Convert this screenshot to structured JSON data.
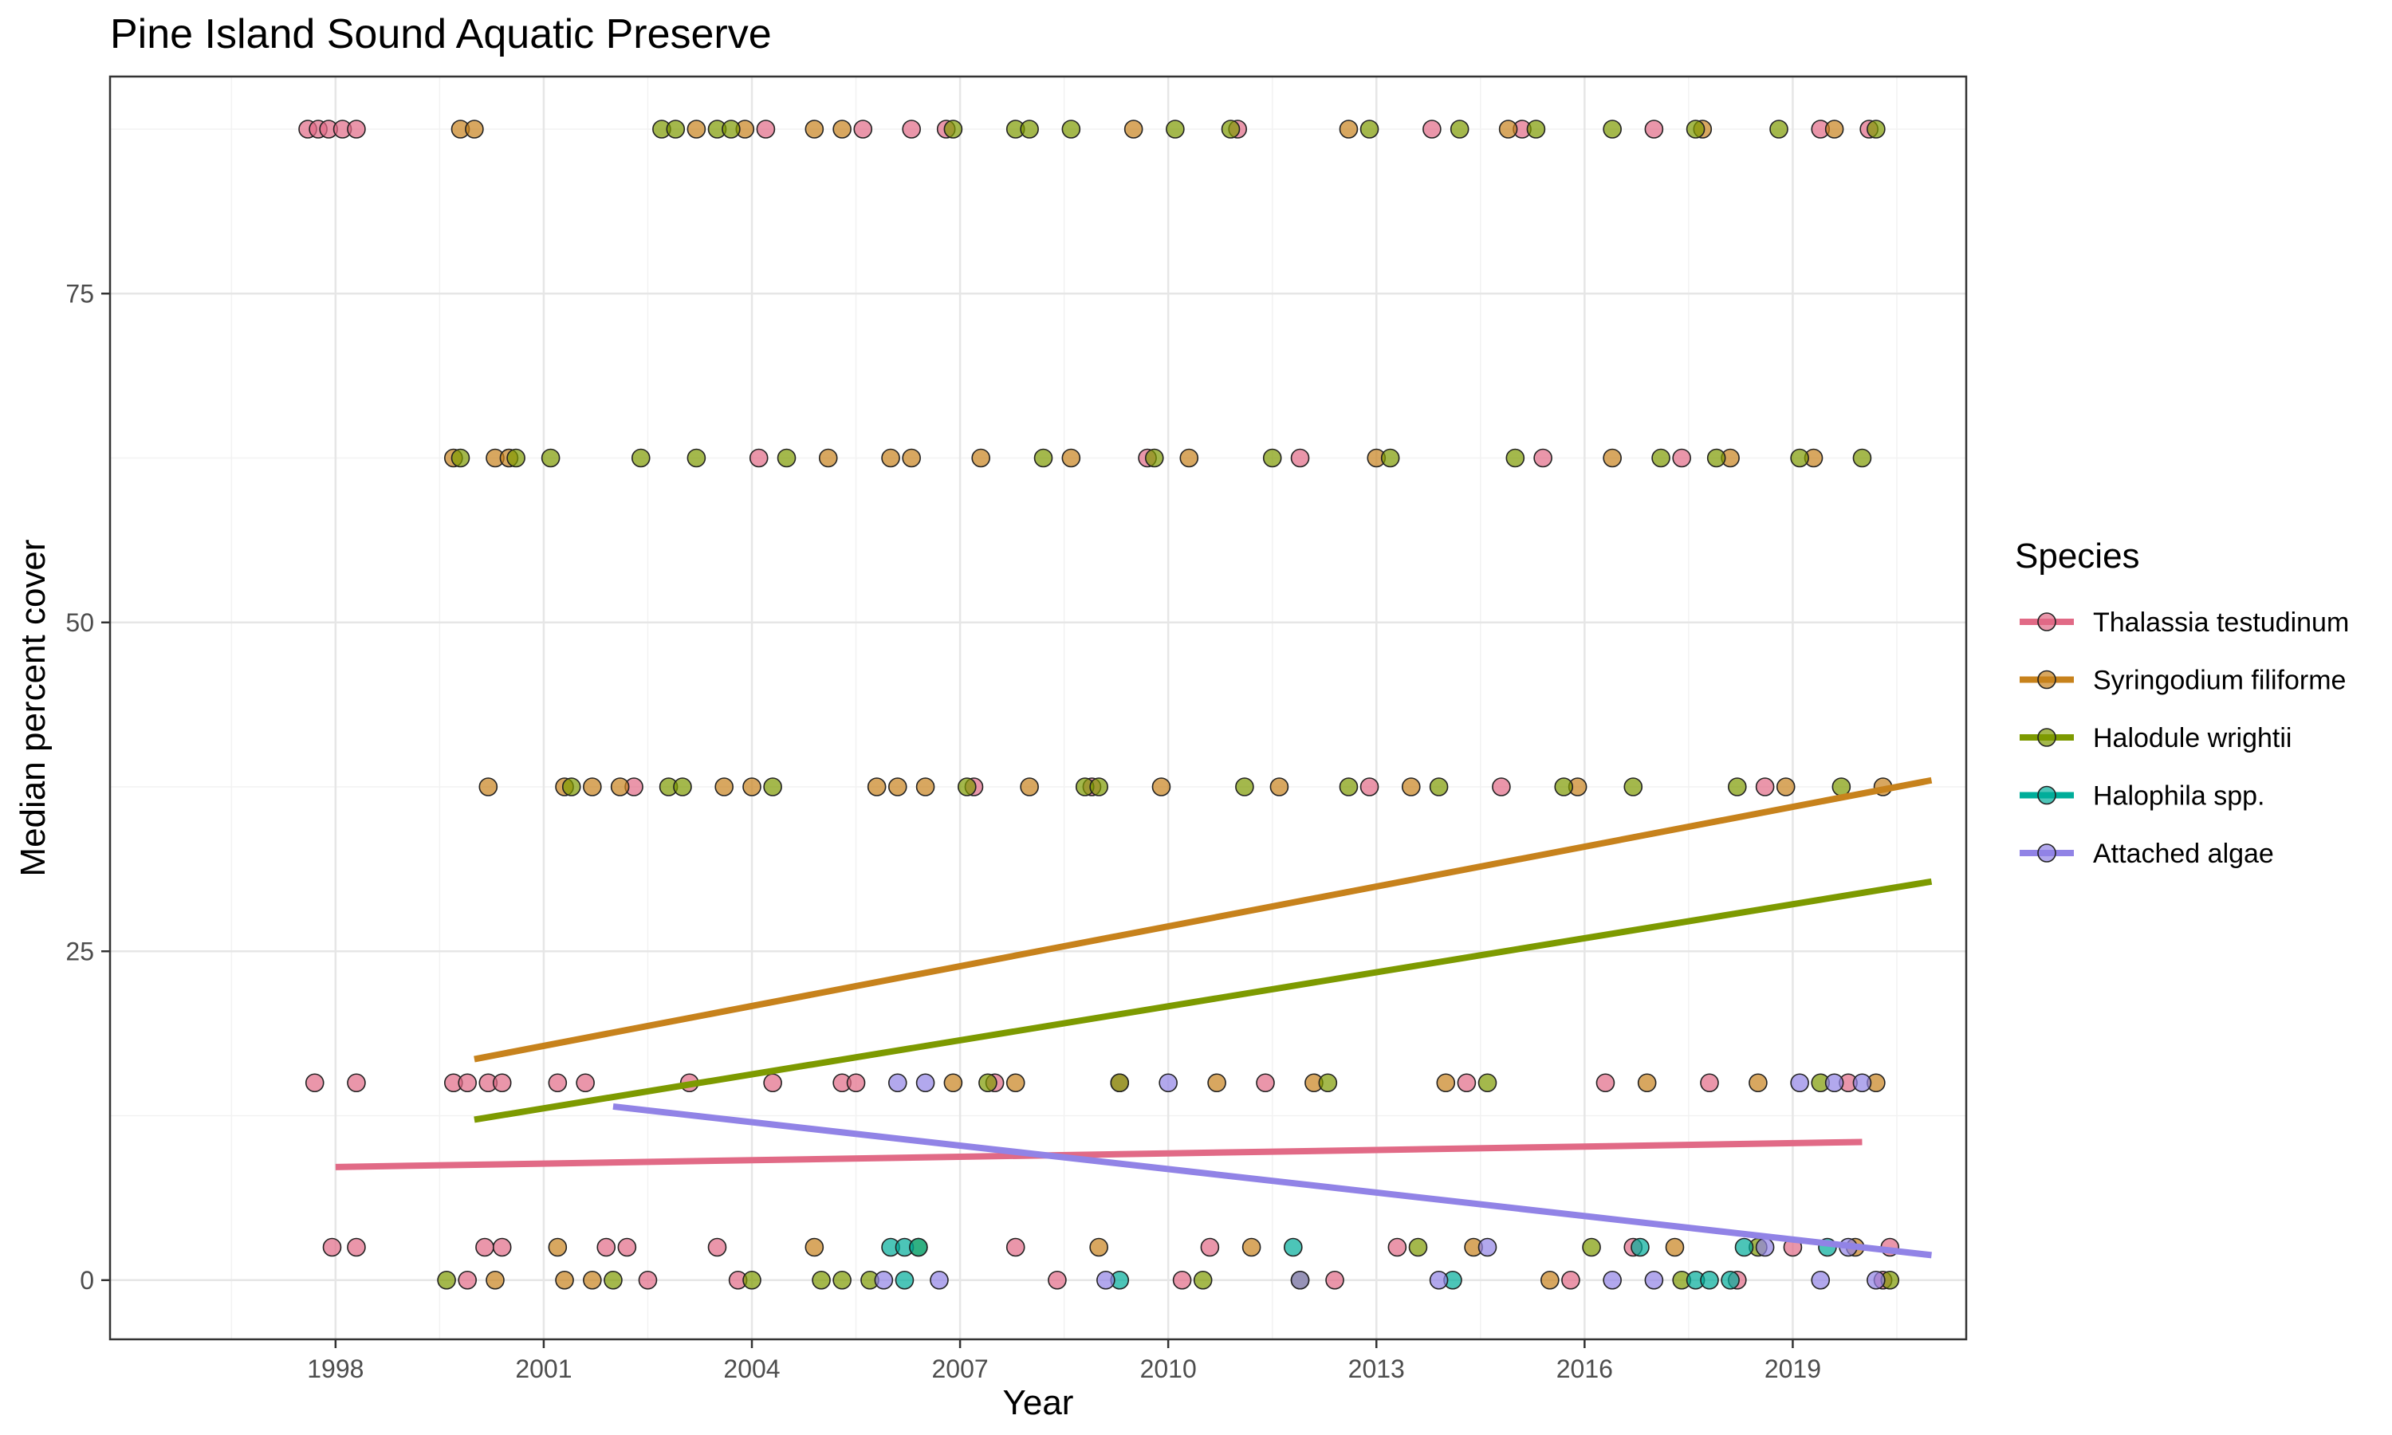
{
  "chart_data": {
    "type": "scatter",
    "title": "Pine Island Sound Aquatic Preserve",
    "xlabel": "Year",
    "ylabel": "Median percent cover",
    "xlim": [
      1994.75,
      2021.5
    ],
    "ylim": [
      -4.5,
      91.5
    ],
    "x_ticks": [
      1998,
      2001,
      2004,
      2007,
      2010,
      2013,
      2016,
      2019
    ],
    "x_tick_labels": [
      "1998",
      "2001",
      "2004",
      "2007",
      "2010",
      "2013",
      "2016",
      "2019"
    ],
    "y_ticks": [
      0,
      25,
      50,
      75
    ],
    "y_tick_labels": [
      "0",
      "25",
      "50",
      "75"
    ],
    "y_minor_ticks": [
      12.5,
      37.5,
      62.5,
      87.5
    ],
    "cover_levels": [
      0,
      2.5,
      15,
      37.5,
      62.5,
      87.5
    ],
    "grid": true,
    "legend": {
      "title": "Species",
      "position": "right",
      "entries": [
        {
          "name": "Thalassia testudinum",
          "color": "#E16A86"
        },
        {
          "name": "Syringodium filiforme",
          "color": "#C7821C"
        },
        {
          "name": "Halodule wrightii",
          "color": "#7D9A00"
        },
        {
          "name": "Halophila spp.",
          "color": "#00AD9A"
        },
        {
          "name": "Attached algae",
          "color": "#9183E6"
        }
      ]
    },
    "trend_lines": [
      {
        "name": "Thalassia testudinum",
        "x": [
          1998,
          2020
        ],
        "y": [
          8.6,
          10.5
        ]
      },
      {
        "name": "Syringodium filiforme",
        "x": [
          2000,
          2021
        ],
        "y": [
          16.8,
          38.0
        ]
      },
      {
        "name": "Halodule wrightii",
        "x": [
          2000,
          2021
        ],
        "y": [
          12.2,
          30.3
        ]
      },
      {
        "name": "Attached algae",
        "x": [
          2002,
          2021
        ],
        "y": [
          13.2,
          1.9
        ]
      }
    ],
    "series": [
      {
        "name": "Thalassia testudinum",
        "color": "#E16A86",
        "points": [
          [
            1997.6,
            87.5
          ],
          [
            1997.75,
            87.5
          ],
          [
            1997.9,
            87.5
          ],
          [
            1998.1,
            87.5
          ],
          [
            1998.3,
            87.5
          ],
          [
            1997.7,
            15
          ],
          [
            1998.3,
            15
          ],
          [
            1997.95,
            2.5
          ],
          [
            1998.3,
            2.5
          ],
          [
            1999.7,
            15
          ],
          [
            1999.9,
            15
          ],
          [
            2000.2,
            15
          ],
          [
            2000.4,
            15
          ],
          [
            1999.9,
            0
          ],
          [
            2000.15,
            2.5
          ],
          [
            2000.4,
            2.5
          ],
          [
            2001.2,
            15
          ],
          [
            2001.6,
            15
          ],
          [
            2001.9,
            2.5
          ],
          [
            2002.2,
            2.5
          ],
          [
            2002.5,
            0
          ],
          [
            2002.3,
            37.5
          ],
          [
            2003.1,
            15
          ],
          [
            2003.5,
            2.5
          ],
          [
            2003.8,
            0
          ],
          [
            2004.1,
            62.5
          ],
          [
            2004.2,
            87.5
          ],
          [
            2004.3,
            15
          ],
          [
            2005.3,
            15
          ],
          [
            2005.5,
            15
          ],
          [
            2005.6,
            87.5
          ],
          [
            2006.3,
            87.5
          ],
          [
            2006.8,
            87.5
          ],
          [
            2007.2,
            37.5
          ],
          [
            2007.5,
            15
          ],
          [
            2007.8,
            2.5
          ],
          [
            2008.4,
            0
          ],
          [
            2008.9,
            37.5
          ],
          [
            2009.3,
            15
          ],
          [
            2009.7,
            62.5
          ],
          [
            2010.2,
            0
          ],
          [
            2010.6,
            2.5
          ],
          [
            2011.0,
            87.5
          ],
          [
            2011.4,
            15
          ],
          [
            2011.9,
            62.5
          ],
          [
            2012.4,
            0
          ],
          [
            2012.9,
            37.5
          ],
          [
            2013.3,
            2.5
          ],
          [
            2013.8,
            87.5
          ],
          [
            2014.3,
            15
          ],
          [
            2014.8,
            37.5
          ],
          [
            2015.1,
            87.5
          ],
          [
            2015.4,
            62.5
          ],
          [
            2015.8,
            0
          ],
          [
            2016.3,
            15
          ],
          [
            2016.7,
            2.5
          ],
          [
            2017.0,
            87.5
          ],
          [
            2017.4,
            62.5
          ],
          [
            2017.8,
            15
          ],
          [
            2018.2,
            0
          ],
          [
            2018.6,
            37.5
          ],
          [
            2019.0,
            2.5
          ],
          [
            2019.4,
            87.5
          ],
          [
            2019.8,
            15
          ],
          [
            2020.1,
            87.5
          ],
          [
            2020.3,
            0
          ],
          [
            2020.4,
            2.5
          ]
        ]
      },
      {
        "name": "Syringodium filiforme",
        "color": "#C7821C",
        "points": [
          [
            1999.8,
            87.5
          ],
          [
            2000.0,
            87.5
          ],
          [
            1999.7,
            62.5
          ],
          [
            2000.3,
            62.5
          ],
          [
            2000.5,
            62.5
          ],
          [
            2000.2,
            37.5
          ],
          [
            2000.3,
            0
          ],
          [
            2001.3,
            0
          ],
          [
            2001.7,
            0
          ],
          [
            2001.3,
            37.5
          ],
          [
            2001.7,
            37.5
          ],
          [
            2002.1,
            37.5
          ],
          [
            2001.2,
            2.5
          ],
          [
            2003.2,
            87.5
          ],
          [
            2003.9,
            87.5
          ],
          [
            2004.9,
            87.5
          ],
          [
            2005.3,
            87.5
          ],
          [
            2004.9,
            2.5
          ],
          [
            2005.1,
            62.5
          ],
          [
            2003.6,
            37.5
          ],
          [
            2004.0,
            37.5
          ],
          [
            2005.8,
            37.5
          ],
          [
            2006.1,
            37.5
          ],
          [
            2006.5,
            37.5
          ],
          [
            2006.0,
            62.5
          ],
          [
            2006.3,
            62.5
          ],
          [
            2006.9,
            15
          ],
          [
            2007.3,
            62.5
          ],
          [
            2007.8,
            15
          ],
          [
            2008.0,
            37.5
          ],
          [
            2008.6,
            62.5
          ],
          [
            2009.0,
            2.5
          ],
          [
            2009.5,
            87.5
          ],
          [
            2009.9,
            37.5
          ],
          [
            2010.3,
            62.5
          ],
          [
            2010.7,
            15
          ],
          [
            2011.2,
            2.5
          ],
          [
            2011.6,
            37.5
          ],
          [
            2012.1,
            15
          ],
          [
            2012.6,
            87.5
          ],
          [
            2013.0,
            62.5
          ],
          [
            2013.5,
            37.5
          ],
          [
            2014.0,
            15
          ],
          [
            2014.4,
            2.5
          ],
          [
            2014.9,
            87.5
          ],
          [
            2015.5,
            0
          ],
          [
            2015.9,
            37.5
          ],
          [
            2016.4,
            62.5
          ],
          [
            2016.9,
            15
          ],
          [
            2017.3,
            2.5
          ],
          [
            2017.7,
            87.5
          ],
          [
            2018.1,
            62.5
          ],
          [
            2018.5,
            15
          ],
          [
            2018.9,
            37.5
          ],
          [
            2019.3,
            62.5
          ],
          [
            2019.6,
            87.5
          ],
          [
            2019.9,
            2.5
          ],
          [
            2020.2,
            15
          ],
          [
            2020.3,
            37.5
          ]
        ]
      },
      {
        "name": "Halodule wrightii",
        "color": "#7D9A00",
        "points": [
          [
            1999.6,
            0
          ],
          [
            1999.8,
            62.5
          ],
          [
            2000.6,
            62.5
          ],
          [
            2001.1,
            62.5
          ],
          [
            2001.4,
            37.5
          ],
          [
            2002.0,
            0
          ],
          [
            2002.4,
            62.5
          ],
          [
            2002.7,
            87.5
          ],
          [
            2002.9,
            87.5
          ],
          [
            2003.2,
            62.5
          ],
          [
            2003.5,
            87.5
          ],
          [
            2003.7,
            87.5
          ],
          [
            2002.8,
            37.5
          ],
          [
            2003.0,
            37.5
          ],
          [
            2004.3,
            37.5
          ],
          [
            2004.0,
            0
          ],
          [
            2004.5,
            62.5
          ],
          [
            2005.0,
            0
          ],
          [
            2005.3,
            0
          ],
          [
            2005.7,
            0
          ],
          [
            2006.4,
            2.5
          ],
          [
            2006.9,
            87.5
          ],
          [
            2007.1,
            37.5
          ],
          [
            2007.4,
            15
          ],
          [
            2007.8,
            87.5
          ],
          [
            2008.0,
            87.5
          ],
          [
            2008.2,
            62.5
          ],
          [
            2008.6,
            87.5
          ],
          [
            2008.8,
            37.5
          ],
          [
            2009.0,
            37.5
          ],
          [
            2009.3,
            15
          ],
          [
            2009.8,
            62.5
          ],
          [
            2010.1,
            87.5
          ],
          [
            2010.5,
            0
          ],
          [
            2010.9,
            87.5
          ],
          [
            2011.1,
            37.5
          ],
          [
            2011.5,
            62.5
          ],
          [
            2011.9,
            0
          ],
          [
            2012.3,
            15
          ],
          [
            2012.6,
            37.5
          ],
          [
            2012.9,
            87.5
          ],
          [
            2013.2,
            62.5
          ],
          [
            2013.6,
            2.5
          ],
          [
            2013.9,
            37.5
          ],
          [
            2014.2,
            87.5
          ],
          [
            2014.6,
            15
          ],
          [
            2015.0,
            62.5
          ],
          [
            2015.3,
            87.5
          ],
          [
            2015.7,
            37.5
          ],
          [
            2016.1,
            2.5
          ],
          [
            2016.4,
            87.5
          ],
          [
            2016.7,
            37.5
          ],
          [
            2017.1,
            62.5
          ],
          [
            2017.4,
            0
          ],
          [
            2017.6,
            87.5
          ],
          [
            2017.9,
            62.5
          ],
          [
            2018.2,
            37.5
          ],
          [
            2018.5,
            2.5
          ],
          [
            2018.8,
            87.5
          ],
          [
            2019.1,
            62.5
          ],
          [
            2019.4,
            15
          ],
          [
            2019.7,
            37.5
          ],
          [
            2020.0,
            62.5
          ],
          [
            2020.2,
            87.5
          ],
          [
            2020.4,
            0
          ]
        ]
      },
      {
        "name": "Halophila spp.",
        "color": "#00AD9A",
        "points": [
          [
            2006.0,
            2.5
          ],
          [
            2006.2,
            2.5
          ],
          [
            2006.4,
            2.5
          ],
          [
            2006.2,
            0
          ],
          [
            2009.3,
            0
          ],
          [
            2011.8,
            2.5
          ],
          [
            2014.1,
            0
          ],
          [
            2016.8,
            2.5
          ],
          [
            2017.6,
            0
          ],
          [
            2017.8,
            0
          ],
          [
            2018.1,
            0
          ],
          [
            2018.3,
            2.5
          ],
          [
            2019.5,
            2.5
          ]
        ]
      },
      {
        "name": "Attached algae",
        "color": "#9183E6",
        "points": [
          [
            2006.1,
            15
          ],
          [
            2006.5,
            15
          ],
          [
            2005.9,
            0
          ],
          [
            2006.7,
            0
          ],
          [
            2009.1,
            0
          ],
          [
            2010.0,
            15
          ],
          [
            2011.9,
            0
          ],
          [
            2013.9,
            0
          ],
          [
            2014.6,
            2.5
          ],
          [
            2016.4,
            0
          ],
          [
            2017.0,
            0
          ],
          [
            2018.6,
            2.5
          ],
          [
            2019.1,
            15
          ],
          [
            2019.6,
            15
          ],
          [
            2020.0,
            15
          ],
          [
            2019.4,
            0
          ],
          [
            2020.2,
            0
          ],
          [
            2019.8,
            2.5
          ]
        ]
      }
    ]
  }
}
